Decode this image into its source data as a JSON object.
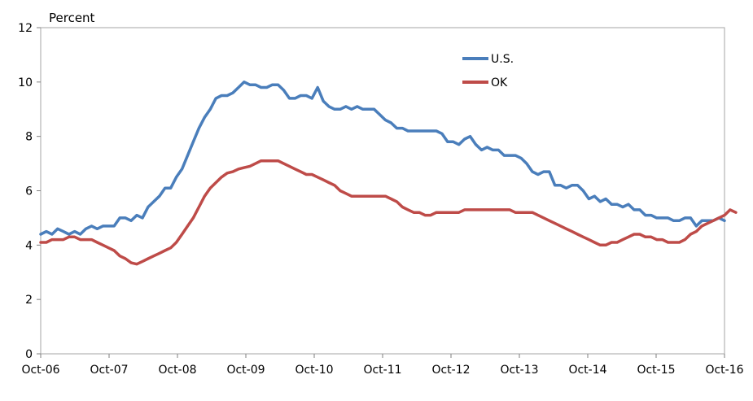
{
  "chart_data": {
    "type": "line",
    "title": "",
    "ylabel": "Percent",
    "xlabel": "",
    "ylim": [
      0,
      12
    ],
    "yticks": [
      0,
      2,
      4,
      6,
      8,
      10,
      12
    ],
    "x_tick_labels": [
      "Oct-06",
      "Oct-07",
      "Oct-08",
      "Oct-09",
      "Oct-10",
      "Oct-11",
      "Oct-12",
      "Oct-13",
      "Oct-14",
      "Oct-15",
      "Oct-16"
    ],
    "x_start": "Oct-06",
    "x_end": "Oct-16",
    "grid": false,
    "legend_position": "top-right",
    "series": [
      {
        "name": "U.S.",
        "color": "#4a7ebb",
        "values": [
          4.4,
          4.5,
          4.4,
          4.6,
          4.5,
          4.4,
          4.5,
          4.4,
          4.6,
          4.7,
          4.6,
          4.7,
          4.7,
          4.7,
          5.0,
          5.0,
          4.9,
          5.1,
          5.0,
          5.4,
          5.6,
          5.8,
          6.1,
          6.1,
          6.5,
          6.8,
          7.3,
          7.8,
          8.3,
          8.7,
          9.0,
          9.4,
          9.5,
          9.5,
          9.6,
          9.8,
          10.0,
          9.9,
          9.9,
          9.8,
          9.8,
          9.9,
          9.9,
          9.7,
          9.4,
          9.4,
          9.5,
          9.5,
          9.4,
          9.8,
          9.3,
          9.1,
          9.0,
          9.0,
          9.1,
          9.0,
          9.1,
          9.0,
          9.0,
          9.0,
          8.8,
          8.6,
          8.5,
          8.3,
          8.3,
          8.2,
          8.2,
          8.2,
          8.2,
          8.2,
          8.2,
          8.1,
          7.8,
          7.8,
          7.7,
          7.9,
          8.0,
          7.7,
          7.5,
          7.6,
          7.5,
          7.5,
          7.3,
          7.3,
          7.3,
          7.2,
          7.0,
          6.7,
          6.6,
          6.7,
          6.7,
          6.2,
          6.2,
          6.1,
          6.2,
          6.2,
          6.0,
          5.7,
          5.8,
          5.6,
          5.7,
          5.5,
          5.5,
          5.4,
          5.5,
          5.3,
          5.3,
          5.1,
          5.1,
          5.0,
          5.0,
          5.0,
          4.9,
          4.9,
          5.0,
          5.0,
          4.7,
          4.9,
          4.9,
          4.9,
          5.0,
          4.9
        ]
      },
      {
        "name": "OK",
        "color": "#be4b48",
        "values": [
          4.1,
          4.1,
          4.2,
          4.2,
          4.2,
          4.3,
          4.3,
          4.2,
          4.2,
          4.2,
          4.1,
          4.0,
          3.9,
          3.8,
          3.6,
          3.5,
          3.35,
          3.3,
          3.4,
          3.5,
          3.6,
          3.7,
          3.8,
          3.9,
          4.1,
          4.4,
          4.7,
          5.0,
          5.4,
          5.8,
          6.1,
          6.3,
          6.5,
          6.65,
          6.7,
          6.8,
          6.85,
          6.9,
          7.0,
          7.1,
          7.1,
          7.1,
          7.1,
          7.0,
          6.9,
          6.8,
          6.7,
          6.6,
          6.6,
          6.5,
          6.4,
          6.3,
          6.2,
          6.0,
          5.9,
          5.8,
          5.8,
          5.8,
          5.8,
          5.8,
          5.8,
          5.8,
          5.7,
          5.6,
          5.4,
          5.3,
          5.2,
          5.2,
          5.1,
          5.1,
          5.2,
          5.2,
          5.2,
          5.2,
          5.2,
          5.3,
          5.3,
          5.3,
          5.3,
          5.3,
          5.3,
          5.3,
          5.3,
          5.3,
          5.2,
          5.2,
          5.2,
          5.2,
          5.1,
          5.0,
          4.9,
          4.8,
          4.7,
          4.6,
          4.5,
          4.4,
          4.3,
          4.2,
          4.1,
          4.0,
          4.0,
          4.1,
          4.1,
          4.2,
          4.3,
          4.4,
          4.4,
          4.3,
          4.3,
          4.2,
          4.2,
          4.1,
          4.1,
          4.1,
          4.2,
          4.4,
          4.5,
          4.7,
          4.8,
          4.9,
          5.0,
          5.1,
          5.3,
          5.2
        ]
      }
    ]
  }
}
